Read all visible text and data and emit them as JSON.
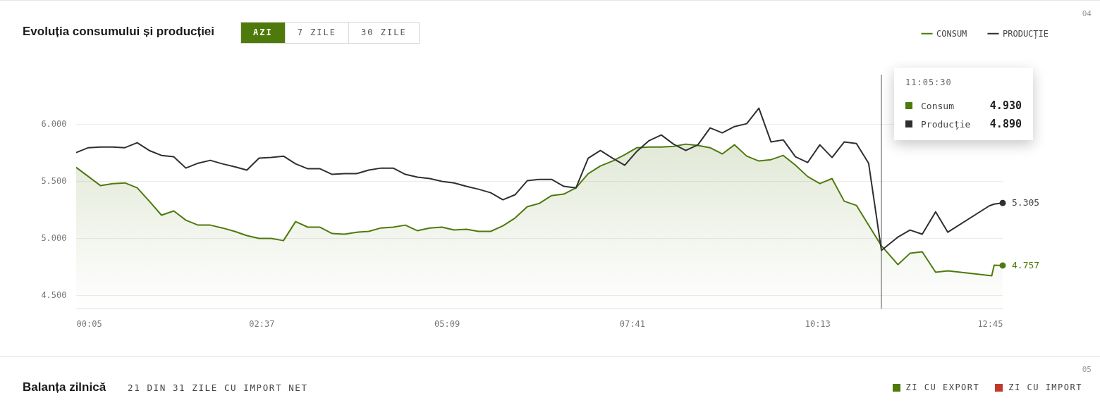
{
  "chart_data": [
    {
      "type": "line",
      "title": "Evoluția consumului și producției",
      "xlim": [
        0.083,
        12.75
      ],
      "xticks": [
        {
          "value": 0.083,
          "label": "00:05"
        },
        {
          "value": 2.617,
          "label": "02:37"
        },
        {
          "value": 5.15,
          "label": "05:09"
        },
        {
          "value": 7.683,
          "label": "07:41"
        },
        {
          "value": 10.217,
          "label": "10:13"
        },
        {
          "value": 12.75,
          "label": "12:45"
        }
      ],
      "ylim": [
        4380,
        6430
      ],
      "yticks": [
        {
          "value": 4500,
          "label": "4.500"
        },
        {
          "value": 5000,
          "label": "5.000"
        },
        {
          "value": 5500,
          "label": "5.500"
        },
        {
          "value": 6000,
          "label": "6.000"
        }
      ],
      "grid": "y",
      "legend": "top right",
      "ref_lines": [
        {
          "axis": "x",
          "value": 11.092,
          "color": "#555555"
        }
      ],
      "annotations": [
        "04",
        "AZI",
        "7 ZILE",
        "30 ZILE",
        "11:05:30",
        "Consum",
        "4.930",
        "Producție",
        "4.890"
      ],
      "series": [
        {
          "name": "CONSUM",
          "type": "area",
          "color": "#4e7a0c",
          "x": [
            0.083,
            0.25,
            0.417,
            0.583,
            0.75,
            0.917,
            1.083,
            1.25,
            1.417,
            1.583,
            1.75,
            1.917,
            2.083,
            2.25,
            2.417,
            2.583,
            2.75,
            2.917,
            3.083,
            3.25,
            3.417,
            3.583,
            3.75,
            3.917,
            4.083,
            4.25,
            4.417,
            4.583,
            4.75,
            4.917,
            5.083,
            5.25,
            5.417,
            5.583,
            5.75,
            5.917,
            6.083,
            6.25,
            6.417,
            6.583,
            6.75,
            6.917,
            7.083,
            7.25,
            7.417,
            7.583,
            7.75,
            7.917,
            8.083,
            8.25,
            8.417,
            8.583,
            8.75,
            8.917,
            9.083,
            9.25,
            9.417,
            9.583,
            9.75,
            9.917,
            10.083,
            10.25,
            10.417,
            10.583,
            10.75,
            11.092,
            11.317,
            11.483,
            11.65,
            11.833,
            12.0,
            12.6,
            12.633,
            12.75
          ],
          "values": [
            5617,
            5537,
            5457,
            5475,
            5481,
            5438,
            5321,
            5198,
            5235,
            5154,
            5111,
            5111,
            5086,
            5056,
            5019,
            4994,
            4994,
            4975,
            5142,
            5093,
            5093,
            5037,
            5031,
            5049,
            5056,
            5086,
            5093,
            5111,
            5062,
            5086,
            5093,
            5068,
            5074,
            5056,
            5056,
            5105,
            5173,
            5272,
            5302,
            5370,
            5383,
            5438,
            5562,
            5630,
            5673,
            5728,
            5790,
            5796,
            5796,
            5802,
            5821,
            5809,
            5790,
            5735,
            5815,
            5716,
            5673,
            5685,
            5722,
            5636,
            5537,
            5475,
            5519,
            5321,
            5284,
            4930,
            4765,
            4864,
            4877,
            4698,
            4710,
            4667,
            4759,
            4757
          ],
          "value_labels": [
            null,
            null,
            null,
            null,
            null,
            null,
            null,
            null,
            null,
            null,
            null,
            null,
            null,
            null,
            null,
            null,
            null,
            null,
            null,
            null,
            null,
            null,
            null,
            null,
            null,
            null,
            null,
            null,
            null,
            null,
            null,
            null,
            null,
            null,
            null,
            null,
            null,
            null,
            null,
            null,
            null,
            null,
            null,
            null,
            null,
            null,
            null,
            null,
            null,
            null,
            null,
            null,
            null,
            null,
            null,
            null,
            null,
            null,
            null,
            null,
            null,
            null,
            null,
            null,
            null,
            null,
            null,
            null,
            null,
            null,
            null,
            null,
            null,
            "4.757"
          ]
        },
        {
          "name": "PRODUCȚIE",
          "type": "line",
          "color": "#2d2f31",
          "x": [
            0.083,
            0.25,
            0.417,
            0.583,
            0.75,
            0.917,
            1.083,
            1.25,
            1.417,
            1.583,
            1.75,
            1.917,
            2.083,
            2.25,
            2.417,
            2.583,
            2.75,
            2.917,
            3.083,
            3.25,
            3.417,
            3.583,
            3.75,
            3.917,
            4.083,
            4.25,
            4.417,
            4.583,
            4.75,
            4.917,
            5.083,
            5.25,
            5.417,
            5.583,
            5.75,
            5.917,
            6.083,
            6.25,
            6.417,
            6.583,
            6.75,
            6.917,
            7.083,
            7.25,
            7.417,
            7.583,
            7.75,
            7.917,
            8.083,
            8.25,
            8.417,
            8.583,
            8.75,
            8.917,
            9.083,
            9.25,
            9.417,
            9.583,
            9.75,
            9.917,
            10.083,
            10.25,
            10.417,
            10.583,
            10.75,
            10.917,
            11.092,
            11.317,
            11.483,
            11.65,
            11.833,
            12.0,
            12.567,
            12.633,
            12.75
          ],
          "values": [
            5747,
            5790,
            5796,
            5796,
            5790,
            5833,
            5765,
            5722,
            5710,
            5611,
            5654,
            5679,
            5648,
            5623,
            5593,
            5698,
            5704,
            5716,
            5648,
            5605,
            5605,
            5556,
            5562,
            5562,
            5593,
            5611,
            5611,
            5556,
            5531,
            5519,
            5494,
            5481,
            5451,
            5426,
            5395,
            5333,
            5377,
            5500,
            5512,
            5512,
            5451,
            5438,
            5698,
            5765,
            5698,
            5636,
            5759,
            5852,
            5901,
            5821,
            5765,
            5815,
            5963,
            5920,
            5975,
            6000,
            6136,
            5840,
            5858,
            5710,
            5660,
            5815,
            5704,
            5840,
            5827,
            5654,
            4890,
            5006,
            5068,
            5031,
            5228,
            5049,
            5280,
            5295,
            5305
          ],
          "value_labels": [
            null,
            null,
            null,
            null,
            null,
            null,
            null,
            null,
            null,
            null,
            null,
            null,
            null,
            null,
            null,
            null,
            null,
            null,
            null,
            null,
            null,
            null,
            null,
            null,
            null,
            null,
            null,
            null,
            null,
            null,
            null,
            null,
            null,
            null,
            null,
            null,
            null,
            null,
            null,
            null,
            null,
            null,
            null,
            null,
            null,
            null,
            null,
            null,
            null,
            null,
            null,
            null,
            null,
            null,
            null,
            null,
            null,
            null,
            null,
            null,
            null,
            null,
            null,
            null,
            null,
            null,
            null,
            null,
            null,
            null,
            null,
            null,
            null,
            null,
            "5.305"
          ]
        }
      ]
    },
    {
      "type": "other",
      "title": "Balanța zilnică",
      "subtitle": "21 DIN 31 ZILE CU IMPORT NET",
      "annotations": [
        "05"
      ],
      "legend": "top right",
      "series": [
        {
          "name": "ZI CU EXPORT",
          "color": "#4e7a0c"
        },
        {
          "name": "ZI CU IMPORT",
          "color": "#c0392b"
        }
      ]
    }
  ]
}
